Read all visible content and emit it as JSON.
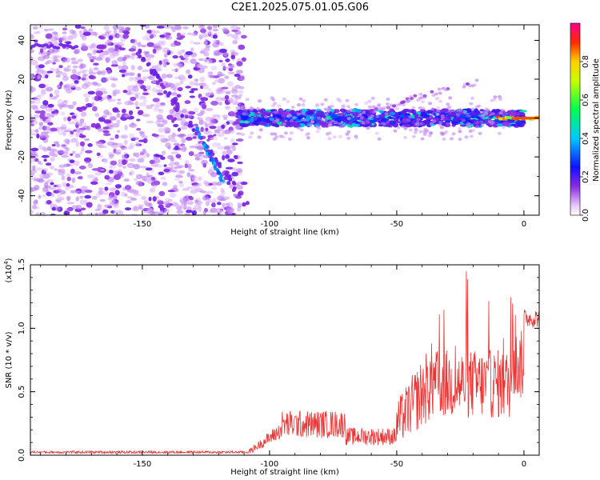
{
  "title": "C2E1.2025.075.01.05.G06",
  "colors": {
    "line": "#ee3333",
    "frame": "#000000"
  },
  "chart_data": [
    {
      "type": "heatmap",
      "xlabel": "Height of straight line (km)",
      "ylabel": "Frequency (Hz)",
      "xlim": [
        -194,
        6
      ],
      "ylim": [
        -50,
        48
      ],
      "x_ticks": [
        -150,
        -100,
        -50,
        0
      ],
      "y_ticks": [
        40,
        20,
        0,
        -20,
        -40
      ],
      "colorbar": {
        "label": "Normalized spectral amplitude",
        "range": [
          0,
          1
        ],
        "ticks": [
          "0.0",
          "0.2",
          "0.4",
          "0.6",
          "0.8"
        ]
      }
    },
    {
      "type": "line",
      "xlabel": "Height of straight line (km)",
      "ylabel": "SNR (10 * v/v)",
      "y_multiplier": "(x10",
      "y_exponent": "4",
      "xlim": [
        -194,
        6
      ],
      "ylim": [
        0,
        1.5
      ],
      "x_ticks": [
        -150,
        -100,
        -50,
        0
      ],
      "y_ticks": [
        "0.0",
        "0.5",
        "1.0",
        "1.5"
      ]
    }
  ]
}
